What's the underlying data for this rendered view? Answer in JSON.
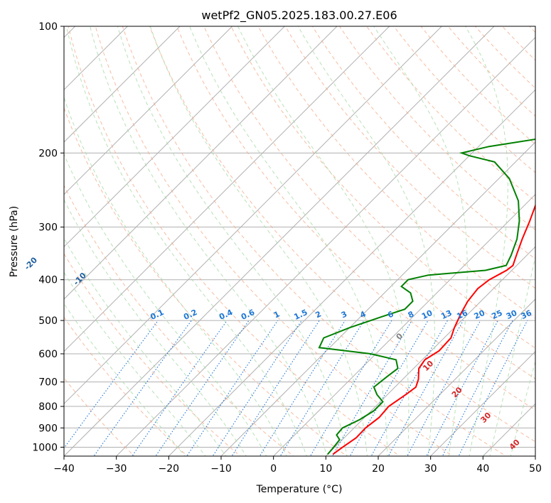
{
  "chart_data": {
    "type": "line",
    "title": "wetPf2_GN05.2025.183.00.27.E06",
    "xlabel": "Temperature (°C)",
    "ylabel": "Pressure (hPa)",
    "xlim": [
      -40,
      50
    ],
    "ylim": [
      1050,
      100
    ],
    "y_scale": "log",
    "grid": true,
    "x_ticks": [
      -40,
      -30,
      -20,
      -10,
      0,
      10,
      20,
      30,
      40,
      50
    ],
    "y_ticks": [
      100,
      200,
      300,
      400,
      500,
      600,
      700,
      800,
      900,
      1000
    ],
    "series": [
      {
        "kind": "temperature",
        "color": "#ff0000",
        "points": [
          [
            11,
            1040
          ],
          [
            11.5,
            1000
          ],
          [
            12.3,
            950
          ],
          [
            12.2,
            900
          ],
          [
            12.8,
            850
          ],
          [
            12.5,
            800
          ],
          [
            13.5,
            750
          ],
          [
            14,
            720
          ],
          [
            13,
            690
          ],
          [
            11,
            650
          ],
          [
            10.5,
            620
          ],
          [
            11.5,
            590
          ],
          [
            11.3,
            550
          ],
          [
            10,
            520
          ],
          [
            8.5,
            480
          ],
          [
            7.5,
            450
          ],
          [
            7,
            420
          ],
          [
            7.5,
            400
          ],
          [
            9,
            380
          ],
          [
            9.3,
            370
          ],
          [
            8,
            350
          ],
          [
            6,
            320
          ],
          [
            4,
            290
          ],
          [
            2,
            265
          ],
          [
            1,
            245
          ],
          [
            2,
            235
          ],
          [
            4,
            225
          ],
          [
            7,
            210
          ],
          [
            9,
            200
          ],
          [
            11,
            190
          ],
          [
            12.5,
            180
          ],
          [
            14,
            170
          ],
          [
            15,
            160
          ],
          [
            17,
            150
          ],
          [
            19,
            140
          ],
          [
            21,
            130
          ],
          [
            23,
            120
          ],
          [
            25,
            112
          ],
          [
            27,
            107
          ],
          [
            29,
            102
          ],
          [
            30,
            100
          ]
        ]
      },
      {
        "kind": "dewpoint",
        "color": "#008000",
        "points": [
          [
            10,
            1040
          ],
          [
            9.8,
            1000
          ],
          [
            9.5,
            960
          ],
          [
            8,
            935
          ],
          [
            7.8,
            900
          ],
          [
            9.5,
            860
          ],
          [
            10.5,
            820
          ],
          [
            10.5,
            780
          ],
          [
            8,
            750
          ],
          [
            6,
            720
          ],
          [
            6.5,
            680
          ],
          [
            7,
            650
          ],
          [
            5,
            620
          ],
          [
            -1,
            600
          ],
          [
            -12,
            580
          ],
          [
            -13,
            550
          ],
          [
            -10,
            520
          ],
          [
            -6,
            490
          ],
          [
            -3,
            470
          ],
          [
            -3,
            450
          ],
          [
            -5,
            430
          ],
          [
            -8,
            415
          ],
          [
            -8,
            400
          ],
          [
            -5,
            390
          ],
          [
            5,
            380
          ],
          [
            8,
            370
          ],
          [
            7,
            350
          ],
          [
            5,
            320
          ],
          [
            2,
            290
          ],
          [
            -2,
            260
          ],
          [
            -8,
            230
          ],
          [
            -14,
            210
          ],
          [
            -20,
            203
          ],
          [
            -22,
            200
          ],
          [
            -18,
            193
          ],
          [
            -10,
            185
          ],
          [
            -8,
            177
          ],
          [
            -9,
            170
          ],
          [
            -12,
            162
          ],
          [
            -13,
            157
          ],
          [
            -10,
            150
          ],
          [
            -8,
            143
          ],
          [
            -7,
            135
          ],
          [
            -5,
            128
          ],
          [
            -3,
            122
          ],
          [
            -1,
            115
          ],
          [
            1,
            108
          ],
          [
            3,
            102
          ],
          [
            4,
            100
          ]
        ]
      }
    ],
    "dry_adiabat_labels": [
      "-100",
      "-90",
      "-80",
      "-70",
      "-60",
      "-50",
      "-40",
      "-30",
      "-20",
      "-10"
    ],
    "moist_adiabat_labels": [
      "0",
      "10",
      "20",
      "30",
      "40"
    ],
    "mixing_ratio_labels": [
      "0.1",
      "0.2",
      "0.4",
      "0.6",
      "1",
      "1.5",
      "2",
      "3",
      "4",
      "6",
      "8",
      "10",
      "13",
      "16",
      "20",
      "25",
      "30",
      "36"
    ],
    "colors": {
      "temperature": "#ff0000",
      "dewpoint": "#008000",
      "isotherm": "#9e9e9e",
      "dry_adiabat": "#f4a582",
      "moist_adiabat": "#a6d9a6",
      "mixing_ratio": "#1f77d4",
      "moist_label": "#d62728",
      "dry_label": "#1f5f9f"
    }
  }
}
